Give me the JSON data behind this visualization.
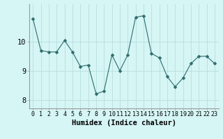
{
  "x": [
    0,
    1,
    2,
    3,
    4,
    5,
    6,
    7,
    8,
    9,
    10,
    11,
    12,
    13,
    14,
    15,
    16,
    17,
    18,
    19,
    20,
    21,
    22,
    23
  ],
  "y": [
    10.8,
    9.7,
    9.65,
    9.65,
    10.05,
    9.65,
    9.15,
    9.2,
    8.2,
    8.3,
    9.55,
    9.0,
    9.55,
    10.85,
    10.9,
    9.6,
    9.45,
    8.8,
    8.45,
    8.75,
    9.25,
    9.5,
    9.5,
    9.25
  ],
  "line_color": "#2e6b6b",
  "marker": "D",
  "marker_size": 2.5,
  "bg_color": "#d6f5f5",
  "grid_color": "#b8dede",
  "xlabel": "Humidex (Indice chaleur)",
  "ylabel": "",
  "xlim": [
    -0.5,
    23.5
  ],
  "ylim": [
    7.7,
    11.3
  ],
  "yticks": [
    8,
    9,
    10
  ],
  "xticks": [
    0,
    1,
    2,
    3,
    4,
    5,
    6,
    7,
    8,
    9,
    10,
    11,
    12,
    13,
    14,
    15,
    16,
    17,
    18,
    19,
    20,
    21,
    22,
    23
  ],
  "xlabel_fontsize": 7.5,
  "ytick_fontsize": 7.5,
  "xtick_fontsize": 6.0
}
